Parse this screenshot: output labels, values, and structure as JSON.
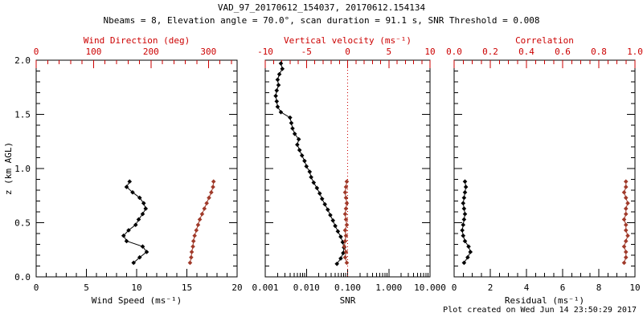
{
  "header": {
    "title": "VAD_97_20170612_154037, 20170612.154134",
    "subtitle": "Nbeams = 8, Elevation angle = 70.0°, scan duration = 91.1 s, SNR Threshold = 0.008"
  },
  "footer": {
    "created_text": "Plot created on Wed Jun 14 23:50:29 2017"
  },
  "colors": {
    "axis_black": "#000000",
    "axis_red": "#cc0000",
    "series_black": "#000000",
    "series_red": "#a03a2a"
  },
  "chart_data": [
    {
      "type": "line",
      "id": "wind-panel",
      "ylabel": "z (km AGL)",
      "ylim": [
        0,
        2.0
      ],
      "yticks": [
        0,
        0.5,
        1.0,
        1.5,
        2.0
      ],
      "ytick_labels": [
        "0.0",
        "0.5",
        "1.0",
        "1.5",
        "2.0"
      ],
      "y_minor_step": 0.1,
      "bottom_axis": {
        "label": "Wind Speed (ms⁻¹)",
        "lim": [
          0,
          20
        ],
        "scale": "linear",
        "ticks": [
          0,
          5,
          10,
          15,
          20
        ],
        "tick_labels": [
          "0",
          "5",
          "10",
          "15",
          "20"
        ],
        "minor_step": 1
      },
      "top_axis": {
        "label": "Wind Direction (deg)",
        "lim": [
          0,
          350
        ],
        "ticks": [
          0,
          100,
          200,
          300
        ],
        "tick_labels": [
          "0",
          "100",
          "200",
          "300"
        ],
        "minor_step": 20
      },
      "series": [
        {
          "name": "wind_speed",
          "axis": "bottom",
          "color": "black",
          "z": [
            0.13,
            0.18,
            0.23,
            0.28,
            0.33,
            0.38,
            0.43,
            0.48,
            0.53,
            0.58,
            0.63,
            0.68,
            0.73,
            0.78,
            0.83,
            0.88
          ],
          "v": [
            9.7,
            10.3,
            11.0,
            10.6,
            9.0,
            8.7,
            9.2,
            9.9,
            10.2,
            10.6,
            10.9,
            10.7,
            10.3,
            9.6,
            9.0,
            9.3
          ]
        },
        {
          "name": "wind_direction",
          "axis": "top",
          "color": "red",
          "z": [
            0.13,
            0.18,
            0.23,
            0.28,
            0.33,
            0.38,
            0.43,
            0.48,
            0.53,
            0.58,
            0.63,
            0.68,
            0.73,
            0.78,
            0.83,
            0.88
          ],
          "v": [
            268,
            270,
            271,
            273,
            274,
            276,
            279,
            282,
            285,
            289,
            293,
            297,
            301,
            305,
            308,
            309
          ]
        }
      ]
    },
    {
      "type": "line",
      "id": "snr-panel",
      "ylabel": "",
      "ylim": [
        0,
        2.0
      ],
      "yticks": [
        0,
        0.5,
        1.0,
        1.5,
        2.0
      ],
      "ytick_labels": [
        "",
        "",
        "",
        "",
        ""
      ],
      "y_minor_step": 0.1,
      "bottom_axis": {
        "label": "SNR",
        "lim": [
          0.001,
          10
        ],
        "scale": "log",
        "ticks": [
          0.001,
          0.01,
          0.1,
          1,
          10
        ],
        "tick_labels": [
          "0.001",
          "0.010",
          "0.100",
          "1.000",
          "10.000"
        ]
      },
      "top_axis": {
        "label": "Vertical velocity (ms⁻¹)",
        "lim": [
          -10,
          10
        ],
        "ticks": [
          -10,
          -5,
          0,
          5,
          10
        ],
        "tick_labels": [
          "-10",
          "-5",
          "0",
          "5",
          "10"
        ],
        "minor_step": 1
      },
      "refline": {
        "axis": "top",
        "value": 0,
        "style": "dotted",
        "color": "red"
      },
      "series": [
        {
          "name": "snr",
          "axis": "bottom",
          "color": "black",
          "z": [
            0.12,
            0.17,
            0.22,
            0.27,
            0.32,
            0.37,
            0.42,
            0.47,
            0.52,
            0.57,
            0.62,
            0.67,
            0.72,
            0.77,
            0.82,
            0.87,
            0.92,
            0.97,
            1.02,
            1.07,
            1.12,
            1.17,
            1.22,
            1.27,
            1.32,
            1.37,
            1.42,
            1.47,
            1.52,
            1.57,
            1.62,
            1.67,
            1.72,
            1.77,
            1.82,
            1.87,
            1.92,
            1.97
          ],
          "v": [
            0.055,
            0.068,
            0.078,
            0.082,
            0.076,
            0.068,
            0.058,
            0.05,
            0.044,
            0.038,
            0.033,
            0.028,
            0.024,
            0.021,
            0.018,
            0.015,
            0.013,
            0.012,
            0.01,
            0.009,
            0.0078,
            0.0068,
            0.006,
            0.0065,
            0.0052,
            0.0046,
            0.0043,
            0.004,
            0.0024,
            0.002,
            0.0019,
            0.0018,
            0.0019,
            0.0021,
            0.002,
            0.0022,
            0.0026,
            0.0024
          ]
        },
        {
          "name": "vertical_velocity",
          "axis": "top",
          "color": "red",
          "z": [
            0.13,
            0.18,
            0.23,
            0.28,
            0.33,
            0.38,
            0.43,
            0.48,
            0.53,
            0.58,
            0.63,
            0.68,
            0.73,
            0.78,
            0.83,
            0.88
          ],
          "v": [
            -0.1,
            -0.3,
            -0.2,
            -0.4,
            -0.3,
            -0.2,
            -0.3,
            -0.1,
            -0.2,
            -0.3,
            -0.2,
            -0.1,
            -0.2,
            -0.3,
            -0.2,
            -0.1
          ]
        }
      ]
    },
    {
      "type": "line",
      "id": "residual-panel",
      "ylabel": "",
      "ylim": [
        0,
        2.0
      ],
      "yticks": [
        0,
        0.5,
        1.0,
        1.5,
        2.0
      ],
      "ytick_labels": [
        "",
        "",
        "",
        "",
        ""
      ],
      "y_minor_step": 0.1,
      "bottom_axis": {
        "label": "Residual (ms⁻¹)",
        "lim": [
          0,
          10
        ],
        "scale": "linear",
        "ticks": [
          0,
          2,
          4,
          6,
          8,
          10
        ],
        "tick_labels": [
          "0",
          "2",
          "4",
          "6",
          "8",
          "10"
        ],
        "minor_step": 0.5
      },
      "top_axis": {
        "label": "Correlation",
        "lim": [
          0,
          1
        ],
        "ticks": [
          0,
          0.2,
          0.4,
          0.6,
          0.8,
          1.0
        ],
        "tick_labels": [
          "0.0",
          "0.2",
          "0.4",
          "0.6",
          "0.8",
          "1.0"
        ],
        "minor_step": 0.05
      },
      "series": [
        {
          "name": "residual",
          "axis": "bottom",
          "color": "black",
          "z": [
            0.13,
            0.18,
            0.23,
            0.28,
            0.33,
            0.38,
            0.43,
            0.48,
            0.53,
            0.58,
            0.63,
            0.68,
            0.73,
            0.78,
            0.83,
            0.88
          ],
          "v": [
            0.55,
            0.75,
            0.9,
            0.8,
            0.6,
            0.5,
            0.45,
            0.5,
            0.55,
            0.6,
            0.55,
            0.5,
            0.55,
            0.6,
            0.65,
            0.6
          ]
        },
        {
          "name": "correlation",
          "axis": "top",
          "color": "red",
          "z": [
            0.13,
            0.18,
            0.23,
            0.28,
            0.33,
            0.38,
            0.43,
            0.48,
            0.53,
            0.58,
            0.63,
            0.68,
            0.73,
            0.78,
            0.83,
            0.88
          ],
          "v": [
            0.94,
            0.95,
            0.95,
            0.94,
            0.95,
            0.96,
            0.95,
            0.95,
            0.94,
            0.95,
            0.95,
            0.96,
            0.95,
            0.94,
            0.95,
            0.95
          ]
        }
      ]
    }
  ]
}
